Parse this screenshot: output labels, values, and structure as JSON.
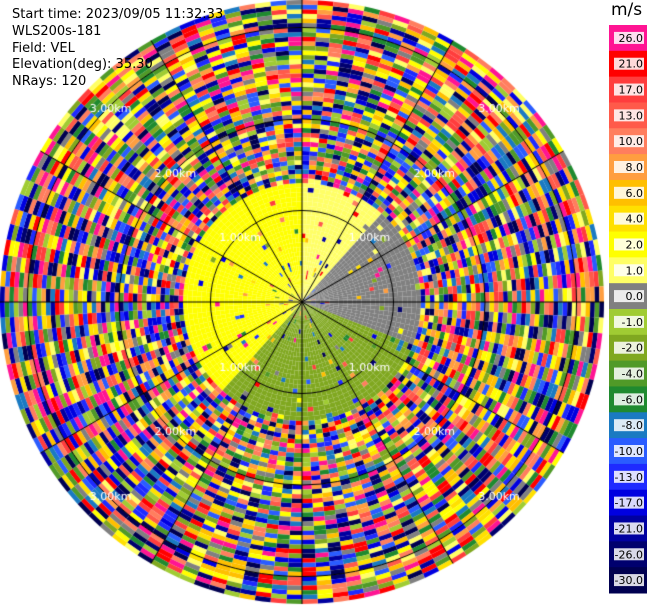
{
  "info": {
    "start_time": "Start time: 2023/09/05 11:32:33",
    "instrument": "WLS200s-181",
    "field": "Field: VEL",
    "elevation": "Elevation(deg): 35.30",
    "nrays": "NRays: 120"
  },
  "colorbar": {
    "unit": "m/s",
    "ticks": [
      "26.0",
      "21.0",
      "17.0",
      "13.0",
      "10.0",
      "8.0",
      "6.0",
      "4.0",
      "2.0",
      "1.0",
      "0.0",
      "-1.0",
      "-2.0",
      "-4.0",
      "-6.0",
      "-8.0",
      "-10.0",
      "-13.0",
      "-17.0",
      "-21.0",
      "-26.0",
      "-30.0"
    ],
    "colors": [
      "#ff1493",
      "#ff0000",
      "#ff3d3d",
      "#ff5a4a",
      "#ff7e5e",
      "#ff9e40",
      "#ffbf00",
      "#ffe000",
      "#ffff00",
      "#ffff66",
      "#808080",
      "#a0cc33",
      "#80a820",
      "#509a28",
      "#1f8a2f",
      "#1a7ac2",
      "#2a5cff",
      "#1e2aff",
      "#0000e0",
      "#0000a0",
      "#00006e",
      "#000050"
    ]
  },
  "chart_data": {
    "type": "ppi",
    "field": "VEL",
    "unit": "m/s",
    "nrays": 120,
    "range_rings_km": [
      1.0,
      2.0,
      3.0
    ],
    "max_range_km": 3.3,
    "ring_labels": [
      {
        "text": "1.00km"
      },
      {
        "text": "1.00km"
      },
      {
        "text": "1.00km"
      },
      {
        "text": "1.00km"
      },
      {
        "text": "2.00km"
      },
      {
        "text": "2.00km"
      },
      {
        "text": "2.00km"
      },
      {
        "text": "2.00km"
      },
      {
        "text": "3.00km"
      },
      {
        "text": "3.00km"
      },
      {
        "text": "3.00km"
      },
      {
        "text": "3.00km"
      }
    ],
    "regions": [
      {
        "range_km": [
          0.0,
          1.3
        ],
        "azimuth_deg": [
          220,
          360
        ],
        "velocity": 2.0,
        "description": "yellow"
      },
      {
        "range_km": [
          0.0,
          1.3
        ],
        "azimuth_deg": [
          0,
          40
        ],
        "velocity": 1.0
      },
      {
        "range_km": [
          0.0,
          1.3
        ],
        "azimuth_deg": [
          40,
          110
        ],
        "velocity": 0.0
      },
      {
        "range_km": [
          0.0,
          1.3
        ],
        "azimuth_deg": [
          110,
          220
        ],
        "velocity": -2.0
      },
      {
        "range_km": [
          1.3,
          3.3
        ],
        "azimuth_deg": [
          0,
          360
        ],
        "velocity": "noise"
      }
    ]
  }
}
